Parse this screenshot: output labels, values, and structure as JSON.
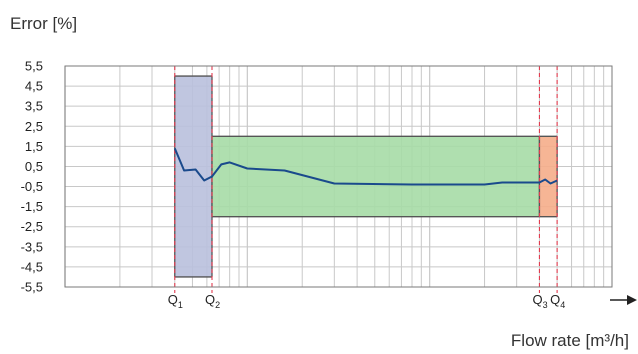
{
  "chart_data": {
    "type": "line",
    "ylabel": "Error [%]",
    "xlabel": "Flow rate [m³/h]",
    "x_scale": "log",
    "ylim": [
      -5.5,
      5.5
    ],
    "y_ticks": [
      "5,5",
      "4,5",
      "3,5",
      "2,5",
      "1,5",
      "0,5",
      "-0,5",
      "-1,5",
      "-2,5",
      "-3,5",
      "-4,5",
      "-5,5"
    ],
    "y_tick_values": [
      5.5,
      4.5,
      3.5,
      2.5,
      1.5,
      0.5,
      -0.5,
      -1.5,
      -2.5,
      -3.5,
      -4.5,
      -5.5
    ],
    "grid": true,
    "flow_points": [
      {
        "name": "Q",
        "sub": "1",
        "x": 0.04
      },
      {
        "name": "Q",
        "sub": "2",
        "x": 0.064
      },
      {
        "name": "Q",
        "sub": "3",
        "x": 4
      },
      {
        "name": "Q",
        "sub": "4",
        "x": 5
      }
    ],
    "error_bands": [
      {
        "x_from": 0.04,
        "x_to": 0.064,
        "y_min": -5,
        "y_max": 5,
        "color": "#b9c0dd"
      },
      {
        "x_from": 0.064,
        "x_to": 4,
        "y_min": -2,
        "y_max": 2,
        "color": "#a6dca6"
      },
      {
        "x_from": 4,
        "x_to": 5,
        "y_min": -2,
        "y_max": 2,
        "color": "#f5ad8a"
      }
    ],
    "series": [
      {
        "color": "#1a4a8c",
        "x": [
          0.04,
          0.045,
          0.052,
          0.058,
          0.064,
          0.072,
          0.08,
          0.1,
          0.16,
          0.3,
          0.8,
          2.0,
          2.5,
          3.2,
          4,
          4.3,
          4.6,
          5
        ],
        "y": [
          1.4,
          0.3,
          0.35,
          -0.2,
          0.0,
          0.6,
          0.7,
          0.4,
          0.3,
          -0.35,
          -0.4,
          -0.4,
          -0.3,
          -0.3,
          -0.3,
          -0.15,
          -0.35,
          -0.2
        ]
      }
    ],
    "colors": {
      "band_border": "#555555",
      "flow_marker": "#e23b4f",
      "grid": "#c8c8c8",
      "axis": "#7a7a7a"
    }
  }
}
